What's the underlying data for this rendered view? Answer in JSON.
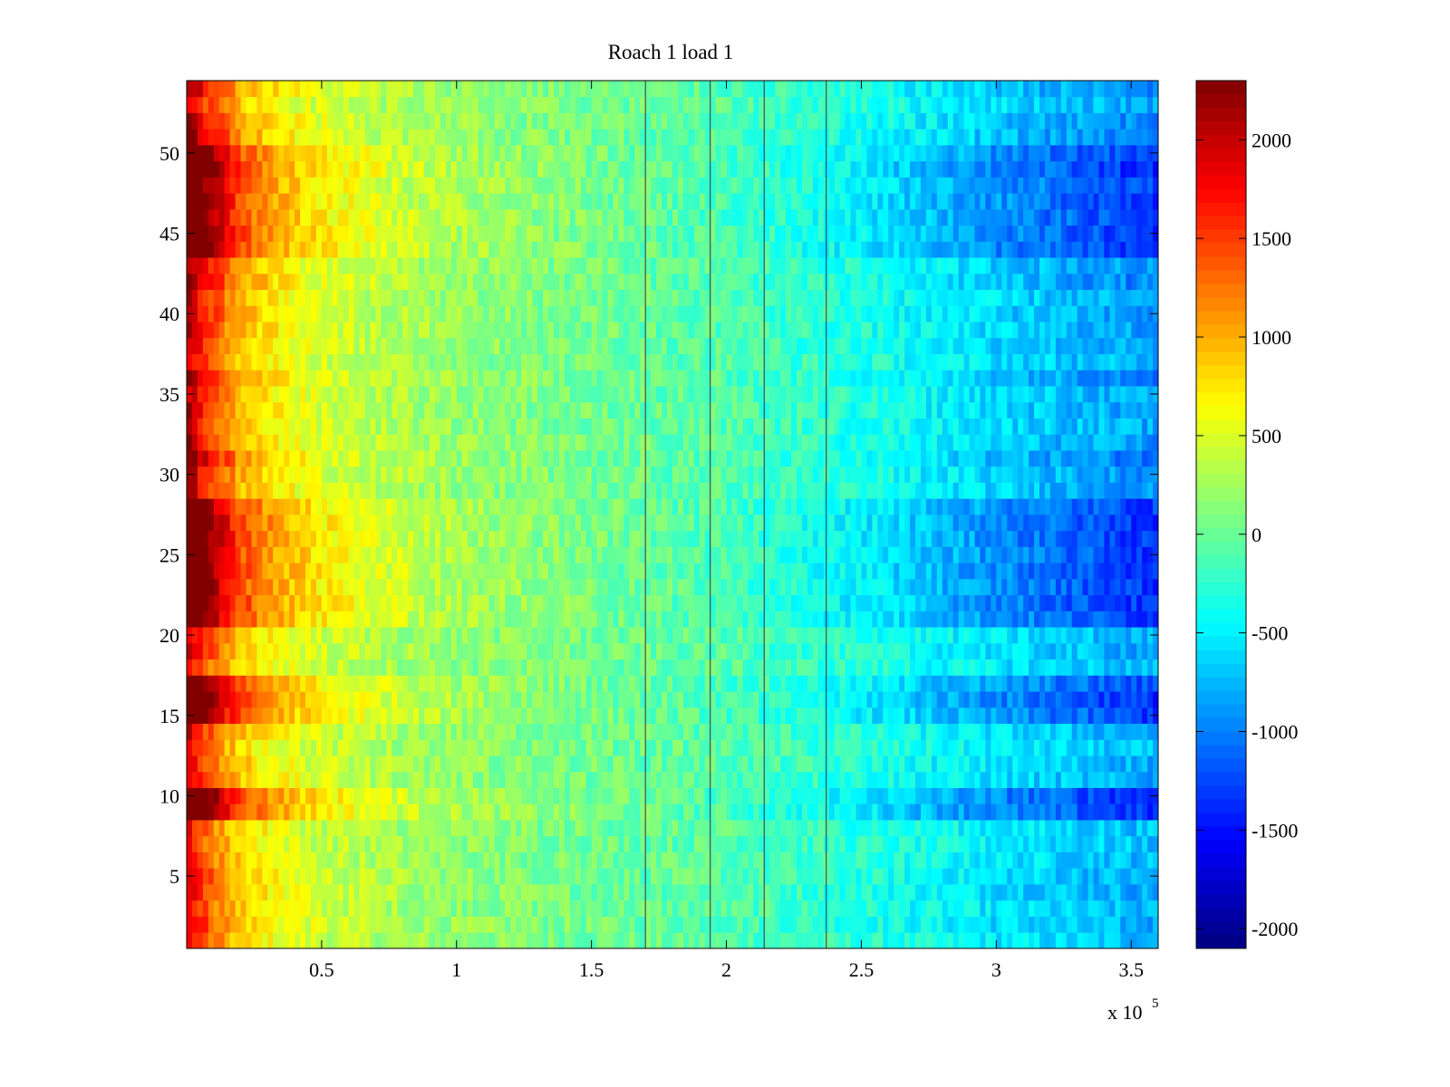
{
  "chart_data": {
    "type": "heatmap",
    "title": "Roach 1 load 1",
    "xlabel": "",
    "ylabel": "",
    "x_exponent_label": "x 10",
    "x_exponent_power": "5",
    "xlim": [
      0,
      3.6
    ],
    "ylim": [
      0.5,
      54.5
    ],
    "x_ticks": [
      0.5,
      1,
      1.5,
      2,
      2.5,
      3,
      3.5
    ],
    "x_tick_labels": [
      "0.5",
      "1",
      "1.5",
      "2",
      "2.5",
      "3",
      "3.5"
    ],
    "y_ticks": [
      5,
      10,
      15,
      20,
      25,
      30,
      35,
      40,
      45,
      50
    ],
    "y_tick_labels": [
      "5",
      "10",
      "15",
      "20",
      "25",
      "30",
      "35",
      "40",
      "45",
      "50"
    ],
    "colormap": "jet",
    "clim": [
      -2100,
      2300
    ],
    "colorbar_ticks": [
      2000,
      1500,
      1000,
      500,
      0,
      -500,
      -1000,
      -1500,
      -2000
    ],
    "colorbar_tick_labels": [
      "2000",
      "1500",
      "1000",
      "500",
      "0",
      "-500",
      "-1000",
      "-1500",
      "-2000"
    ],
    "grid": false,
    "row_count": 54,
    "profile_x": [
      0,
      0.05,
      0.1,
      0.2,
      0.35,
      0.5,
      0.8,
      1.0,
      1.5,
      2.0,
      2.5,
      3.0,
      3.4,
      3.6
    ],
    "profile_mean_value": [
      2300,
      1800,
      1500,
      1000,
      700,
      500,
      300,
      200,
      50,
      -100,
      -350,
      -650,
      -850,
      -950
    ],
    "dark_vertical_lines_x": [
      1.7,
      1.94,
      2.14,
      2.37
    ],
    "strong_rows": [
      9,
      10,
      15,
      16,
      17,
      21,
      22,
      23,
      24,
      25,
      26,
      27,
      28,
      44,
      45,
      46,
      47,
      48,
      49,
      50
    ],
    "weak_rows": [
      1,
      2,
      3,
      4,
      5,
      6,
      7,
      8,
      12,
      13,
      14,
      18,
      19,
      20
    ]
  }
}
